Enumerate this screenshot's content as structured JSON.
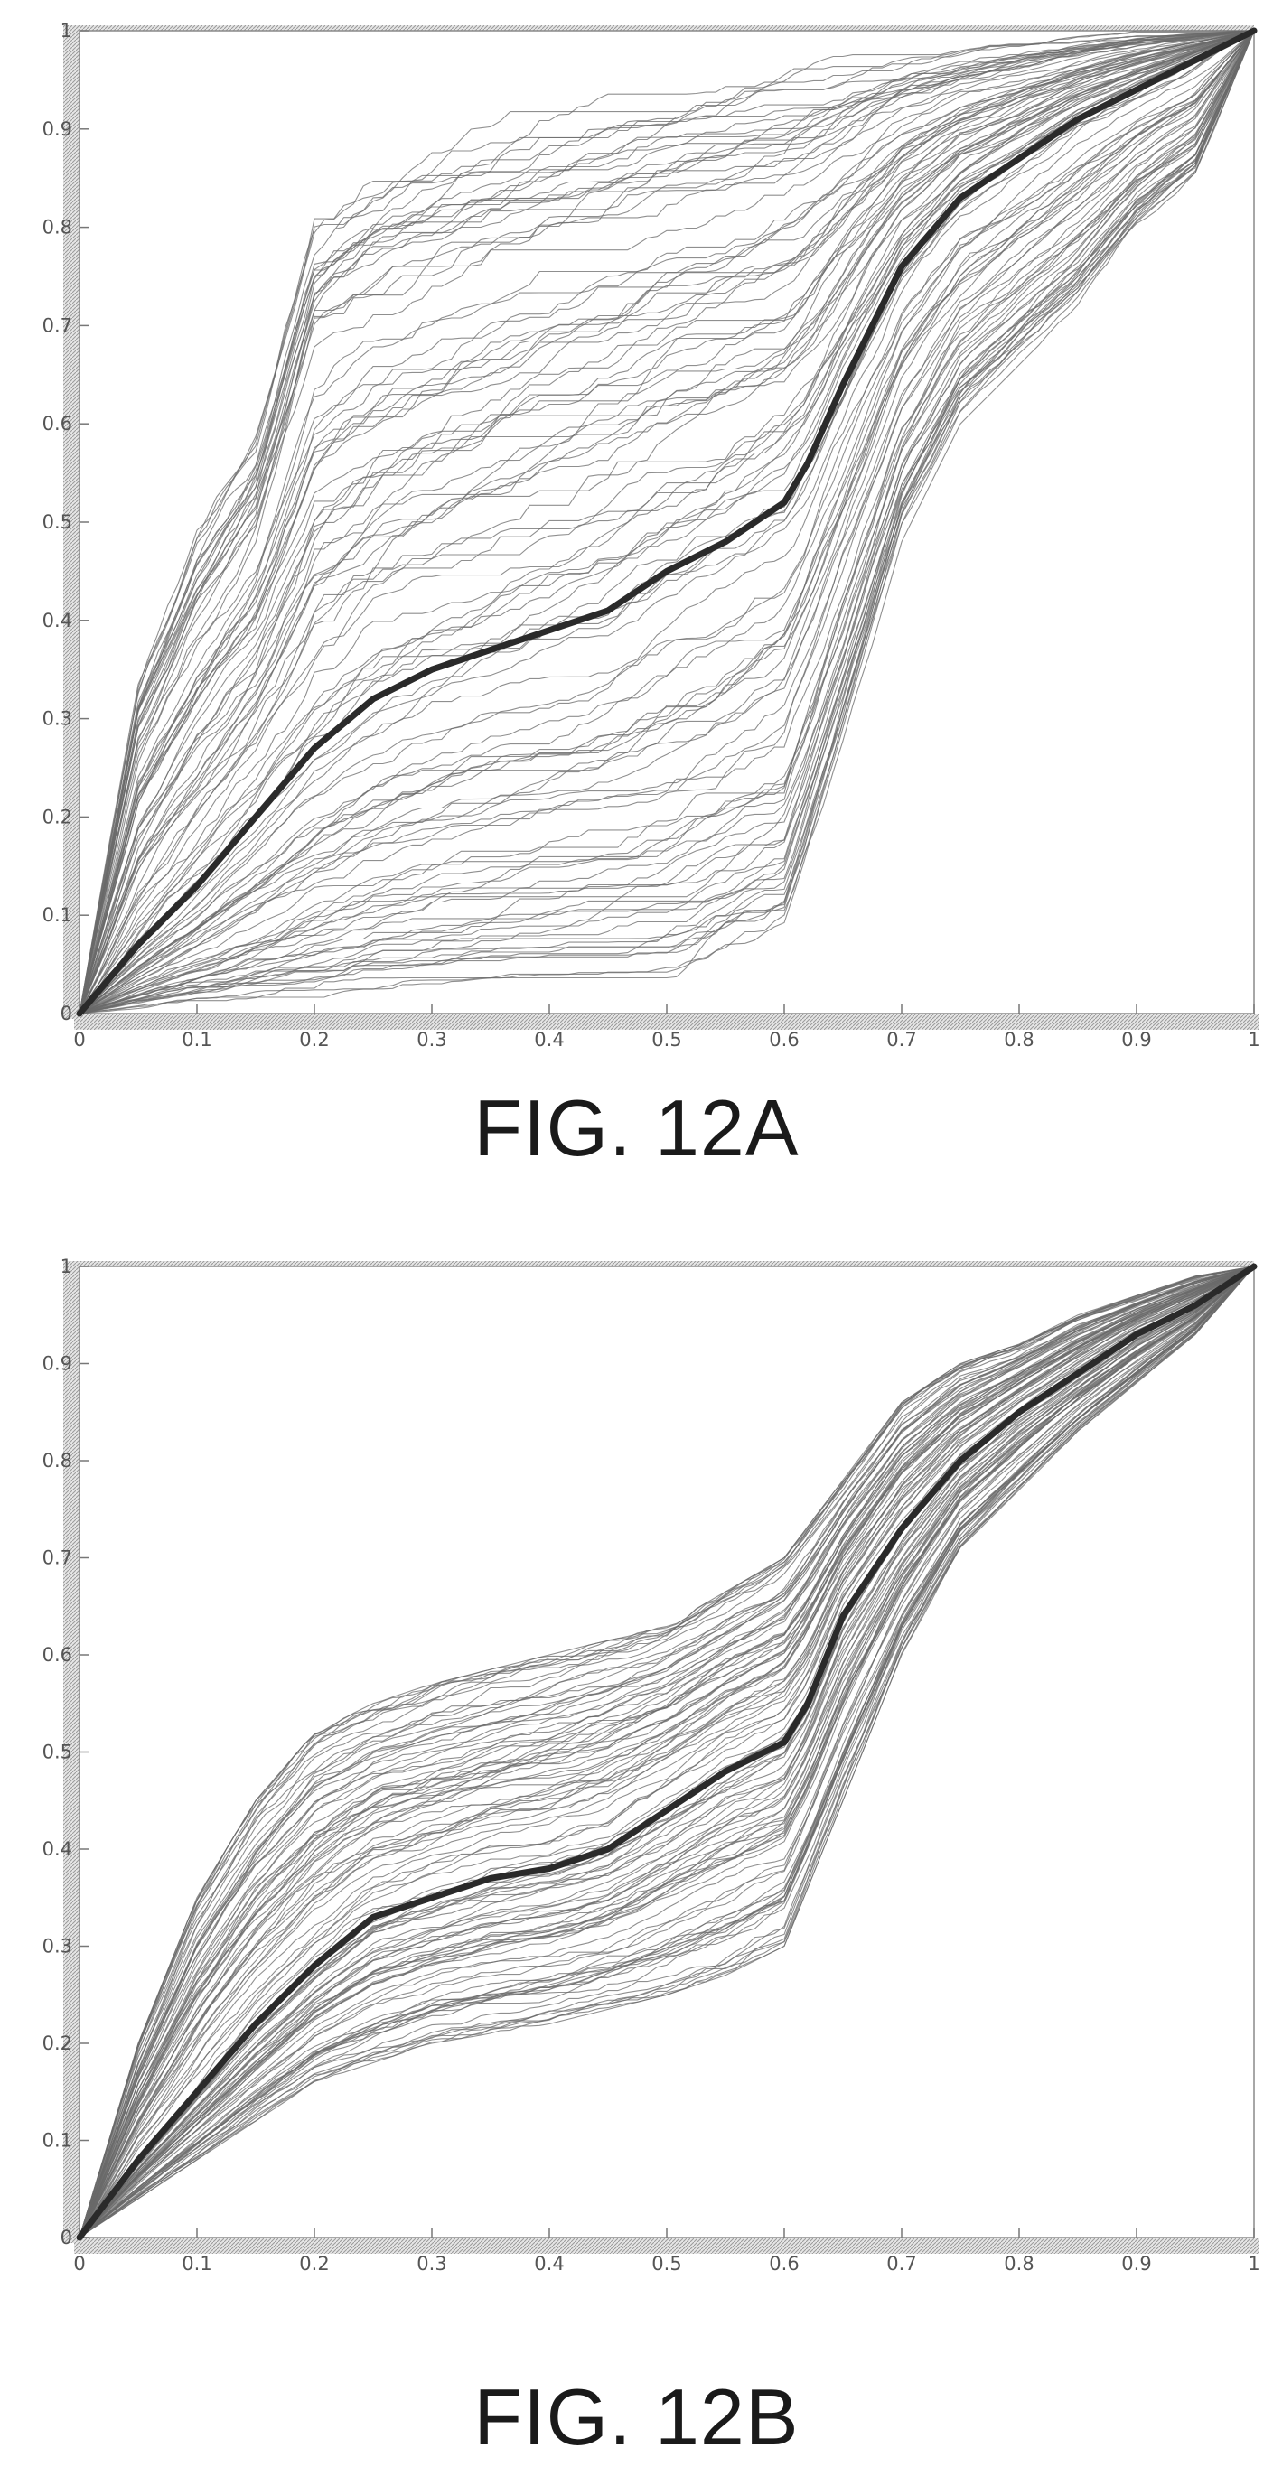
{
  "figures": [
    {
      "caption": "FIG. 12A",
      "chart_data": {
        "type": "line",
        "title": "",
        "xlabel": "",
        "ylabel": "",
        "xlim": [
          0,
          1
        ],
        "ylim": [
          0,
          1
        ],
        "xticks": [
          "0",
          "0.1",
          "0.2",
          "0.3",
          "0.4",
          "0.5",
          "0.6",
          "0.7",
          "0.8",
          "0.9",
          "1"
        ],
        "yticks": [
          "0",
          "0.1",
          "0.2",
          "0.3",
          "0.4",
          "0.5",
          "0.6",
          "0.7",
          "0.8",
          "0.9",
          "1"
        ],
        "grid": false,
        "series_count_visible": "approximately 100 thin curves plus one bold mean curve",
        "mean_curve": {
          "x": [
            0,
            0.05,
            0.1,
            0.15,
            0.2,
            0.25,
            0.3,
            0.35,
            0.4,
            0.45,
            0.5,
            0.55,
            0.6,
            0.62,
            0.65,
            0.7,
            0.75,
            0.8,
            0.85,
            0.9,
            0.95,
            1
          ],
          "y": [
            0,
            0.07,
            0.13,
            0.2,
            0.27,
            0.32,
            0.35,
            0.37,
            0.39,
            0.41,
            0.45,
            0.48,
            0.52,
            0.56,
            0.64,
            0.76,
            0.83,
            0.87,
            0.91,
            0.94,
            0.97,
            1
          ]
        },
        "envelope_upper": {
          "x": [
            0,
            0.05,
            0.1,
            0.15,
            0.2,
            0.25,
            0.3,
            0.4,
            0.5,
            0.6,
            0.7,
            0.8,
            0.9,
            1
          ],
          "y": [
            0,
            0.35,
            0.5,
            0.6,
            0.84,
            0.88,
            0.9,
            0.94,
            0.96,
            0.97,
            0.98,
            0.99,
            1,
            1
          ]
        },
        "envelope_lower": {
          "x": [
            0,
            0.1,
            0.2,
            0.3,
            0.4,
            0.5,
            0.6,
            0.65,
            0.7,
            0.75,
            0.8,
            0.85,
            0.9,
            0.95,
            1
          ],
          "y": [
            0,
            0.01,
            0.01,
            0.02,
            0.02,
            0.02,
            0.07,
            0.27,
            0.48,
            0.6,
            0.66,
            0.72,
            0.8,
            0.85,
            1
          ]
        }
      }
    },
    {
      "caption": "FIG. 12B",
      "chart_data": {
        "type": "line",
        "title": "",
        "xlabel": "",
        "ylabel": "",
        "xlim": [
          0,
          1
        ],
        "ylim": [
          0,
          1
        ],
        "xticks": [
          "0",
          "0.1",
          "0.2",
          "0.3",
          "0.4",
          "0.5",
          "0.6",
          "0.7",
          "0.8",
          "0.9",
          "1"
        ],
        "yticks": [
          "0",
          "0.1",
          "0.2",
          "0.3",
          "0.4",
          "0.5",
          "0.6",
          "0.7",
          "0.8",
          "0.9",
          "1"
        ],
        "grid": false,
        "series_count_visible": "approximately 100 thin curves plus one bold mean curve",
        "mean_curve": {
          "x": [
            0,
            0.05,
            0.1,
            0.15,
            0.2,
            0.25,
            0.3,
            0.35,
            0.4,
            0.45,
            0.5,
            0.55,
            0.6,
            0.62,
            0.65,
            0.7,
            0.75,
            0.8,
            0.85,
            0.9,
            0.95,
            1
          ],
          "y": [
            0,
            0.08,
            0.15,
            0.22,
            0.28,
            0.33,
            0.35,
            0.37,
            0.38,
            0.4,
            0.44,
            0.48,
            0.51,
            0.55,
            0.64,
            0.73,
            0.8,
            0.85,
            0.89,
            0.93,
            0.96,
            1
          ]
        },
        "envelope_upper": {
          "x": [
            0,
            0.05,
            0.1,
            0.15,
            0.2,
            0.25,
            0.3,
            0.4,
            0.5,
            0.6,
            0.65,
            0.7,
            0.75,
            0.8,
            0.85,
            0.9,
            0.95,
            1
          ],
          "y": [
            0,
            0.2,
            0.35,
            0.45,
            0.52,
            0.55,
            0.57,
            0.6,
            0.63,
            0.7,
            0.78,
            0.86,
            0.9,
            0.92,
            0.95,
            0.97,
            0.99,
            1
          ]
        },
        "envelope_lower": {
          "x": [
            0,
            0.1,
            0.2,
            0.3,
            0.4,
            0.5,
            0.55,
            0.6,
            0.65,
            0.7,
            0.75,
            0.8,
            0.85,
            0.9,
            0.95,
            1
          ],
          "y": [
            0,
            0.08,
            0.16,
            0.2,
            0.22,
            0.25,
            0.27,
            0.3,
            0.45,
            0.6,
            0.71,
            0.77,
            0.83,
            0.88,
            0.93,
            1
          ]
        }
      }
    }
  ]
}
